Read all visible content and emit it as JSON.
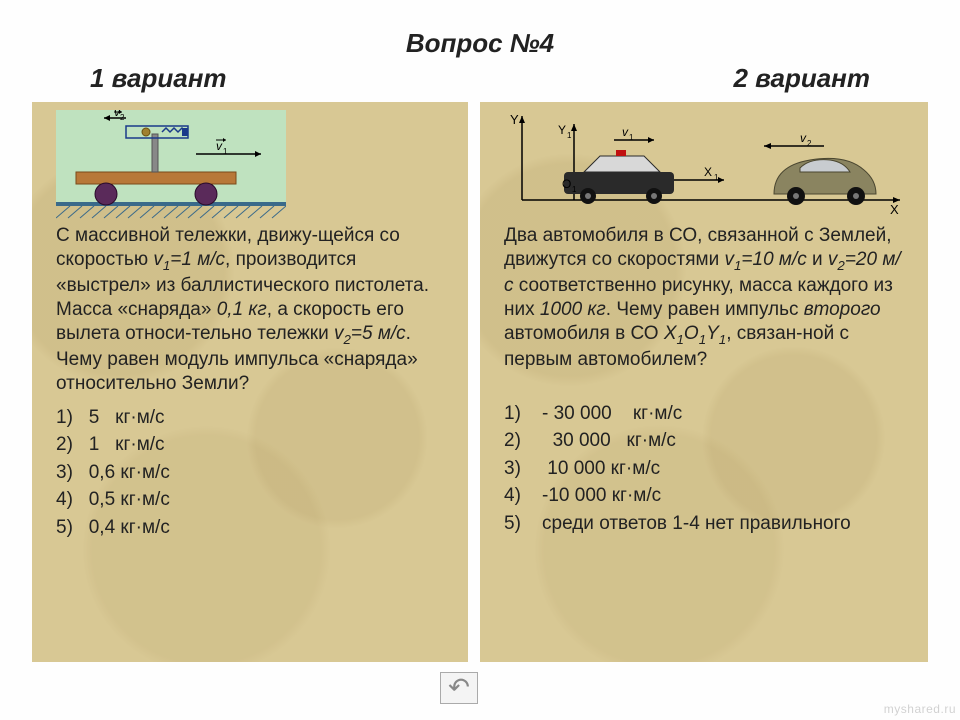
{
  "header": {
    "question": "Вопрос №4",
    "variant1": "1 вариант",
    "variant2": "2 вариант"
  },
  "left": {
    "figure": {
      "type": "diagram",
      "description": "ballistic-cart",
      "bg": "#bfe2bf",
      "plank": "#b87838",
      "wheel": "#5a2a5a",
      "ground_hatch": "#3a6a8a",
      "v1_label": "v₁",
      "v2_label": "v₂"
    },
    "text_html": "С массивной тележки, движу-щейся со скоростью <i>v<sub>1</sub>=1 м/с</i>, производится «выстрел» из баллистического пистолета. Масса «снаряда» <i>0,1 кг</i>, а скорость его вылета относи-тельно тележки <i>v<sub>2</sub>=5 м/с</i>. Чему равен модуль импульса «снаряда» относительно Земли?",
    "options": [
      "1)   5   кг·м/с",
      "2)   1   кг·м/с",
      "3)   0,6 кг·м/с",
      "4)   0,5 кг·м/с",
      "5)   0,4 кг·м/с"
    ]
  },
  "right": {
    "figure": {
      "type": "diagram",
      "description": "two-cars-axes",
      "v1_label": "v₁",
      "v2_label": "v₂",
      "Y": "Y",
      "Y1": "Y₁",
      "X": "X",
      "X1": "X₁",
      "O1": "O₁",
      "car_body": "#2a2a2a",
      "car2_body": "#8a8460"
    },
    "text_html": "Два автомобиля в СО, связанной с Землей, движутся со скоростями <i>v<sub>1</sub>=10 м/с</i> и <i>v<sub>2</sub>=20 м/с</i> соответственно рисунку, масса каждого из них <i>1000 кг</i>. Чему равен импульс <i>второго</i> автомобиля в СО <i>X<sub>1</sub>O<sub>1</sub>Y<sub>1</sub></i>, связан-ной с первым автомобилем?",
    "options": [
      "1)    - 30 000    кг·м/с",
      "2)      30 000   кг·м/с",
      "3)     10 000 кг·м/с",
      "4)    -10 000 кг·м/с",
      "5)    среди ответов 1-4 нет правильного"
    ]
  },
  "nav": {
    "back": "↶"
  },
  "watermark": "myshared.ru"
}
